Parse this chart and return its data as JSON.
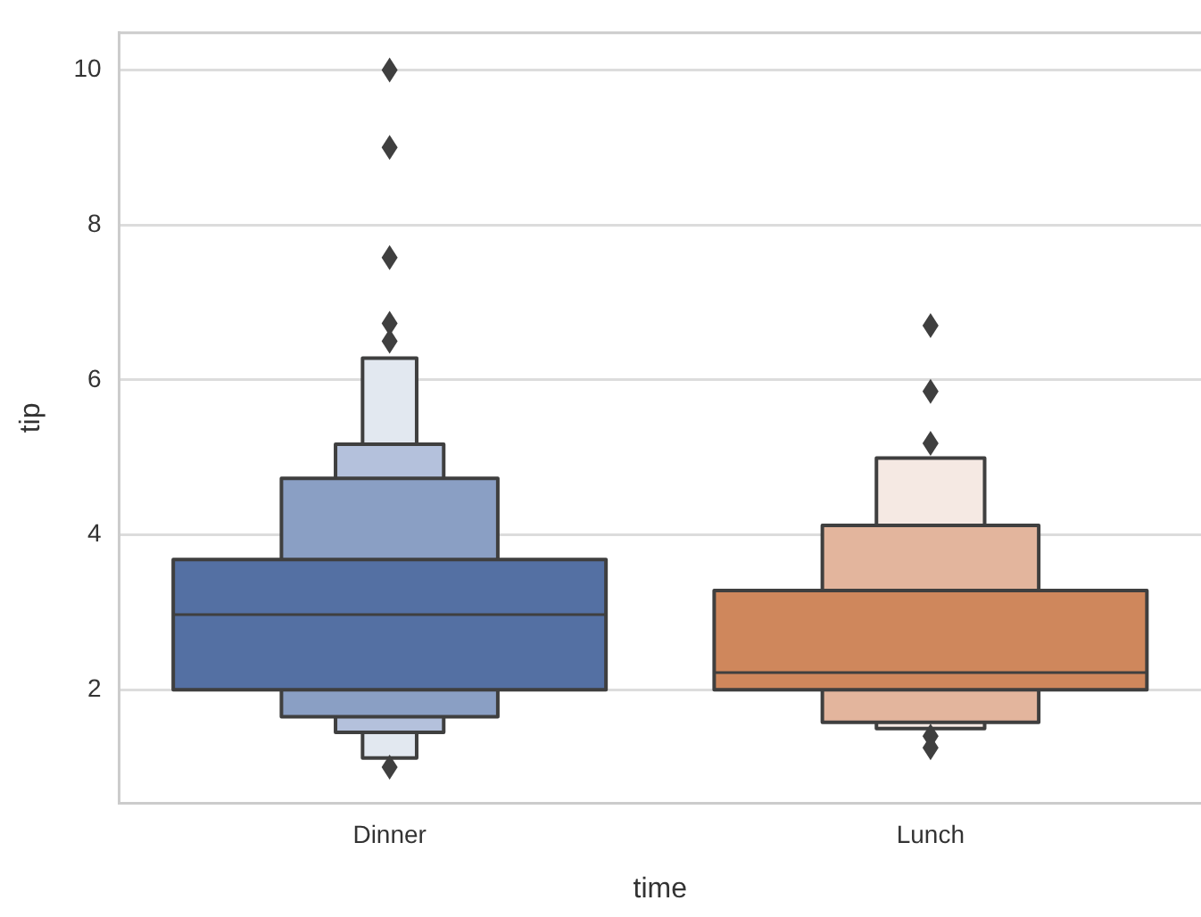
{
  "chart_data": {
    "type": "box",
    "xlabel": "time",
    "ylabel": "tip",
    "categories": [
      "Dinner",
      "Lunch"
    ],
    "ylim": [
      0.54,
      10.48
    ],
    "yticks": [
      2,
      4,
      6,
      8,
      10
    ],
    "grid": "y",
    "series": [
      {
        "colors": [
          "#5470a3",
          "#cf875c"
        ],
        "boxes": [
          {
            "low": 2.0,
            "q1": 2.0,
            "median": 2.97,
            "q3": 3.68,
            "high": 3.68,
            "outliers": [
              10.0,
              9.0,
              7.58,
              6.73,
              6.5,
              1.0
            ]
          },
          {
            "low": 2.0,
            "q1": 2.0,
            "median": 2.22,
            "q3": 3.28,
            "high": 3.28,
            "outliers": [
              6.7,
              5.85,
              5.18,
              1.4,
              1.25
            ]
          }
        ]
      },
      {
        "colors": [
          "#8a9fc4",
          "#e3b59d"
        ],
        "boxes": [
          {
            "low": 1.65,
            "q1": 1.65,
            "q3": 4.73,
            "high": 4.73
          },
          {
            "low": 1.58,
            "q1": 1.58,
            "q3": 4.12,
            "high": 4.12
          }
        ]
      },
      {
        "colors": [
          "#b4c1dc",
          "#f5e9e3"
        ],
        "boxes": [
          {
            "low": 1.45,
            "q1": 1.45,
            "q3": 5.17,
            "high": 5.17
          },
          {
            "low": 1.5,
            "q1": 1.5,
            "q3": 4.99,
            "high": 4.99
          }
        ]
      },
      {
        "colors": [
          "#e2e8f0",
          null
        ],
        "boxes": [
          {
            "low": 1.12,
            "q1": 1.12,
            "q3": 6.28,
            "high": 6.28
          },
          null
        ]
      }
    ]
  }
}
